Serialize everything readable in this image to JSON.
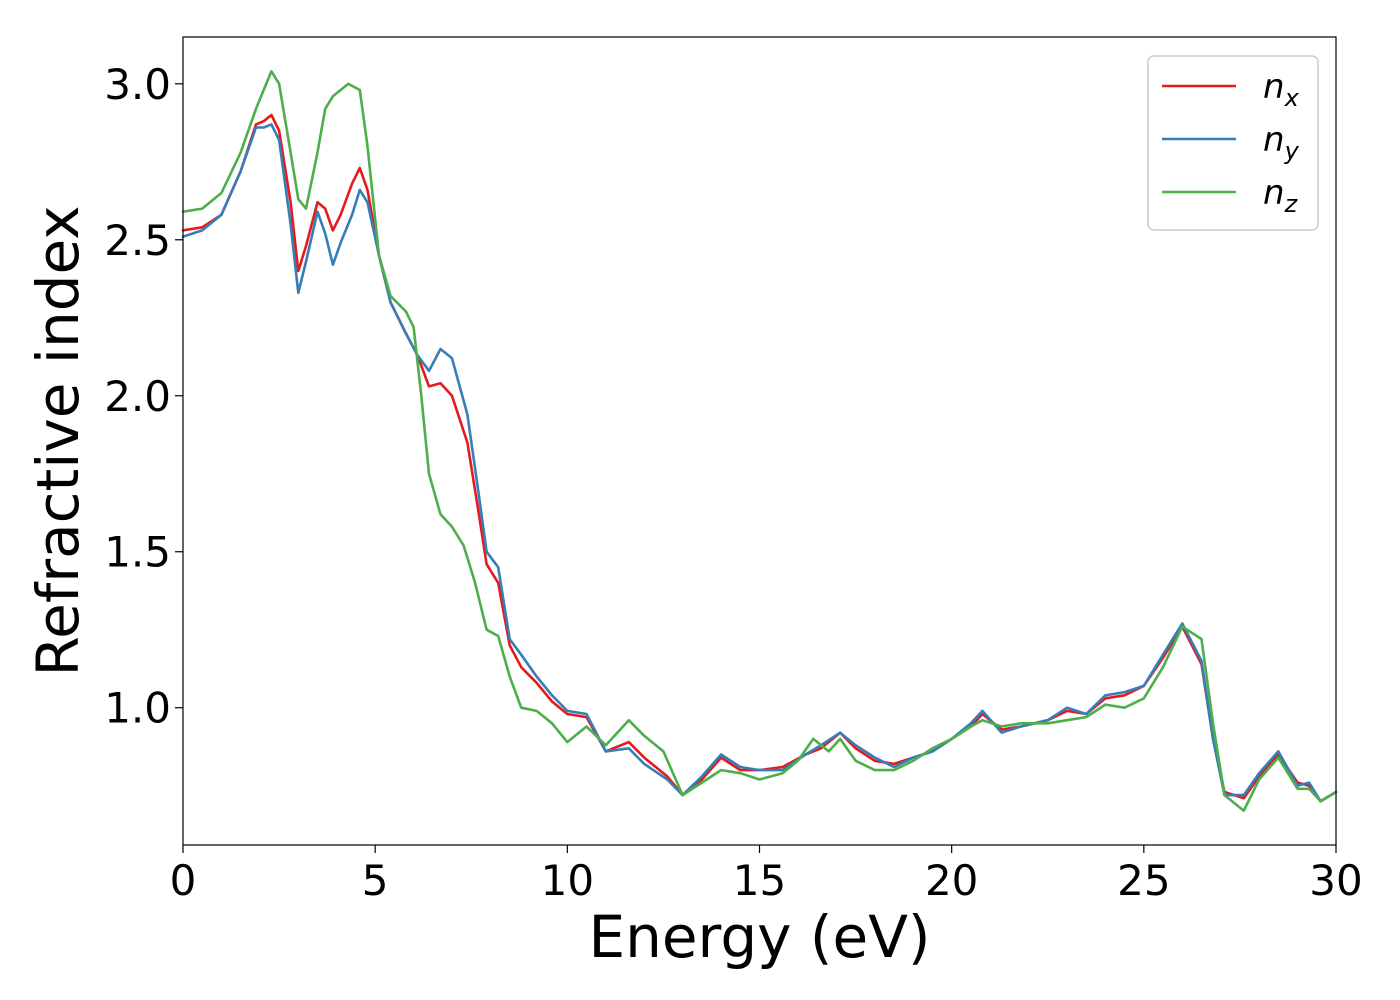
{
  "chart_data": {
    "type": "line",
    "title": "",
    "xlabel": "Energy (eV)",
    "ylabel": "Refractive index",
    "xlim": [
      0,
      30
    ],
    "ylim": [
      0.56,
      3.15
    ],
    "xticks": [
      "0",
      "5",
      "10",
      "15",
      "20",
      "25",
      "30"
    ],
    "yticks": [
      "1.0",
      "1.5",
      "2.0",
      "2.5",
      "3.0"
    ],
    "grid": false,
    "legend_position": "top-right",
    "series": [
      {
        "name": "n",
        "subscript": "x",
        "color": "#e41a1c",
        "points": [
          [
            0,
            2.53
          ],
          [
            0.5,
            2.54
          ],
          [
            1.0,
            2.58
          ],
          [
            1.5,
            2.72
          ],
          [
            1.9,
            2.87
          ],
          [
            2.1,
            2.88
          ],
          [
            2.3,
            2.9
          ],
          [
            2.5,
            2.85
          ],
          [
            2.8,
            2.62
          ],
          [
            3.0,
            2.4
          ],
          [
            3.2,
            2.48
          ],
          [
            3.5,
            2.62
          ],
          [
            3.7,
            2.6
          ],
          [
            3.9,
            2.53
          ],
          [
            4.1,
            2.58
          ],
          [
            4.4,
            2.68
          ],
          [
            4.6,
            2.73
          ],
          [
            4.8,
            2.66
          ],
          [
            5.1,
            2.45
          ],
          [
            5.4,
            2.3
          ],
          [
            5.8,
            2.2
          ],
          [
            6.1,
            2.13
          ],
          [
            6.4,
            2.03
          ],
          [
            6.7,
            2.04
          ],
          [
            7.0,
            2.0
          ],
          [
            7.4,
            1.85
          ],
          [
            7.7,
            1.62
          ],
          [
            7.9,
            1.46
          ],
          [
            8.2,
            1.4
          ],
          [
            8.5,
            1.2
          ],
          [
            8.8,
            1.13
          ],
          [
            9.2,
            1.08
          ],
          [
            9.6,
            1.02
          ],
          [
            10.0,
            0.98
          ],
          [
            10.5,
            0.97
          ],
          [
            11.0,
            0.86
          ],
          [
            11.6,
            0.89
          ],
          [
            12.0,
            0.84
          ],
          [
            12.6,
            0.78
          ],
          [
            13.0,
            0.72
          ],
          [
            13.5,
            0.77
          ],
          [
            14.0,
            0.84
          ],
          [
            14.5,
            0.8
          ],
          [
            15.0,
            0.8
          ],
          [
            15.6,
            0.81
          ],
          [
            16.2,
            0.85
          ],
          [
            16.6,
            0.87
          ],
          [
            17.1,
            0.92
          ],
          [
            17.5,
            0.87
          ],
          [
            18.0,
            0.83
          ],
          [
            18.5,
            0.82
          ],
          [
            19.0,
            0.84
          ],
          [
            19.5,
            0.86
          ],
          [
            20.0,
            0.9
          ],
          [
            20.5,
            0.94
          ],
          [
            20.8,
            0.98
          ],
          [
            21.3,
            0.93
          ],
          [
            21.8,
            0.94
          ],
          [
            22.5,
            0.96
          ],
          [
            23.0,
            0.99
          ],
          [
            23.5,
            0.98
          ],
          [
            24.0,
            1.03
          ],
          [
            24.5,
            1.04
          ],
          [
            25.0,
            1.07
          ],
          [
            25.5,
            1.16
          ],
          [
            26.0,
            1.26
          ],
          [
            26.5,
            1.14
          ],
          [
            26.8,
            0.9
          ],
          [
            27.1,
            0.73
          ],
          [
            27.6,
            0.71
          ],
          [
            28.0,
            0.78
          ],
          [
            28.5,
            0.85
          ],
          [
            29.0,
            0.76
          ],
          [
            29.3,
            0.75
          ],
          [
            29.6,
            0.7
          ],
          [
            30.0,
            0.73
          ]
        ]
      },
      {
        "name": "n",
        "subscript": "y",
        "color": "#377eb8",
        "points": [
          [
            0,
            2.51
          ],
          [
            0.5,
            2.53
          ],
          [
            1.0,
            2.58
          ],
          [
            1.5,
            2.72
          ],
          [
            1.9,
            2.86
          ],
          [
            2.1,
            2.86
          ],
          [
            2.3,
            2.87
          ],
          [
            2.5,
            2.82
          ],
          [
            2.8,
            2.55
          ],
          [
            3.0,
            2.33
          ],
          [
            3.2,
            2.43
          ],
          [
            3.5,
            2.59
          ],
          [
            3.7,
            2.52
          ],
          [
            3.9,
            2.42
          ],
          [
            4.1,
            2.49
          ],
          [
            4.4,
            2.58
          ],
          [
            4.6,
            2.66
          ],
          [
            4.8,
            2.62
          ],
          [
            5.1,
            2.45
          ],
          [
            5.4,
            2.3
          ],
          [
            5.8,
            2.2
          ],
          [
            6.1,
            2.13
          ],
          [
            6.4,
            2.08
          ],
          [
            6.7,
            2.15
          ],
          [
            7.0,
            2.12
          ],
          [
            7.4,
            1.94
          ],
          [
            7.7,
            1.68
          ],
          [
            7.9,
            1.5
          ],
          [
            8.2,
            1.45
          ],
          [
            8.5,
            1.22
          ],
          [
            8.8,
            1.17
          ],
          [
            9.2,
            1.1
          ],
          [
            9.6,
            1.04
          ],
          [
            10.0,
            0.99
          ],
          [
            10.5,
            0.98
          ],
          [
            11.0,
            0.86
          ],
          [
            11.6,
            0.87
          ],
          [
            12.0,
            0.82
          ],
          [
            12.6,
            0.77
          ],
          [
            13.0,
            0.72
          ],
          [
            13.5,
            0.78
          ],
          [
            14.0,
            0.85
          ],
          [
            14.5,
            0.81
          ],
          [
            15.0,
            0.8
          ],
          [
            15.6,
            0.8
          ],
          [
            16.2,
            0.85
          ],
          [
            16.6,
            0.88
          ],
          [
            17.1,
            0.92
          ],
          [
            17.5,
            0.88
          ],
          [
            18.0,
            0.84
          ],
          [
            18.5,
            0.81
          ],
          [
            19.0,
            0.84
          ],
          [
            19.5,
            0.86
          ],
          [
            20.0,
            0.9
          ],
          [
            20.5,
            0.95
          ],
          [
            20.8,
            0.99
          ],
          [
            21.3,
            0.92
          ],
          [
            21.8,
            0.94
          ],
          [
            22.5,
            0.96
          ],
          [
            23.0,
            1.0
          ],
          [
            23.5,
            0.98
          ],
          [
            24.0,
            1.04
          ],
          [
            24.5,
            1.05
          ],
          [
            25.0,
            1.07
          ],
          [
            25.5,
            1.17
          ],
          [
            26.0,
            1.27
          ],
          [
            26.5,
            1.15
          ],
          [
            26.8,
            0.9
          ],
          [
            27.1,
            0.72
          ],
          [
            27.6,
            0.72
          ],
          [
            28.0,
            0.79
          ],
          [
            28.5,
            0.86
          ],
          [
            29.0,
            0.75
          ],
          [
            29.3,
            0.76
          ],
          [
            29.6,
            0.7
          ],
          [
            30.0,
            0.73
          ]
        ]
      },
      {
        "name": "n",
        "subscript": "z",
        "color": "#4daf4a",
        "points": [
          [
            0,
            2.59
          ],
          [
            0.5,
            2.6
          ],
          [
            1.0,
            2.65
          ],
          [
            1.5,
            2.78
          ],
          [
            1.9,
            2.92
          ],
          [
            2.1,
            2.98
          ],
          [
            2.3,
            3.04
          ],
          [
            2.5,
            3.0
          ],
          [
            2.8,
            2.78
          ],
          [
            3.0,
            2.63
          ],
          [
            3.2,
            2.6
          ],
          [
            3.5,
            2.78
          ],
          [
            3.7,
            2.92
          ],
          [
            3.9,
            2.96
          ],
          [
            4.1,
            2.98
          ],
          [
            4.3,
            3.0
          ],
          [
            4.6,
            2.98
          ],
          [
            4.8,
            2.8
          ],
          [
            5.1,
            2.45
          ],
          [
            5.4,
            2.32
          ],
          [
            5.8,
            2.27
          ],
          [
            6.0,
            2.22
          ],
          [
            6.2,
            2.0
          ],
          [
            6.4,
            1.75
          ],
          [
            6.7,
            1.62
          ],
          [
            7.0,
            1.58
          ],
          [
            7.3,
            1.52
          ],
          [
            7.6,
            1.4
          ],
          [
            7.9,
            1.25
          ],
          [
            8.2,
            1.23
          ],
          [
            8.5,
            1.1
          ],
          [
            8.8,
            1.0
          ],
          [
            9.2,
            0.99
          ],
          [
            9.6,
            0.95
          ],
          [
            10.0,
            0.89
          ],
          [
            10.5,
            0.94
          ],
          [
            11.0,
            0.88
          ],
          [
            11.6,
            0.96
          ],
          [
            12.0,
            0.91
          ],
          [
            12.5,
            0.86
          ],
          [
            13.0,
            0.72
          ],
          [
            13.5,
            0.76
          ],
          [
            14.0,
            0.8
          ],
          [
            14.5,
            0.79
          ],
          [
            15.0,
            0.77
          ],
          [
            15.6,
            0.79
          ],
          [
            16.0,
            0.83
          ],
          [
            16.4,
            0.9
          ],
          [
            16.8,
            0.86
          ],
          [
            17.1,
            0.9
          ],
          [
            17.5,
            0.83
          ],
          [
            18.0,
            0.8
          ],
          [
            18.5,
            0.8
          ],
          [
            19.0,
            0.83
          ],
          [
            19.5,
            0.87
          ],
          [
            20.0,
            0.9
          ],
          [
            20.5,
            0.94
          ],
          [
            20.8,
            0.96
          ],
          [
            21.3,
            0.94
          ],
          [
            21.8,
            0.95
          ],
          [
            22.5,
            0.95
          ],
          [
            23.0,
            0.96
          ],
          [
            23.5,
            0.97
          ],
          [
            24.0,
            1.01
          ],
          [
            24.5,
            1.0
          ],
          [
            25.0,
            1.03
          ],
          [
            25.5,
            1.13
          ],
          [
            26.0,
            1.26
          ],
          [
            26.5,
            1.22
          ],
          [
            26.8,
            0.95
          ],
          [
            27.1,
            0.72
          ],
          [
            27.6,
            0.67
          ],
          [
            28.0,
            0.77
          ],
          [
            28.5,
            0.84
          ],
          [
            29.0,
            0.74
          ],
          [
            29.3,
            0.74
          ],
          [
            29.6,
            0.7
          ],
          [
            30.0,
            0.73
          ]
        ]
      }
    ]
  }
}
